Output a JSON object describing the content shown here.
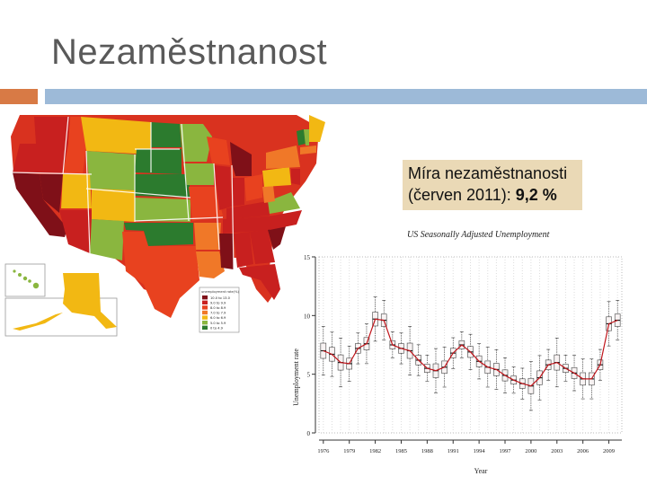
{
  "slide": {
    "title": "Nezaměstnanost",
    "rate_label": "Míra nezaměstnanosti",
    "rate_period": "(červen 2011):",
    "rate_value": "9,2 %"
  },
  "colors": {
    "accent_orange": "#d87a45",
    "accent_blue": "#9dbad8",
    "title": "#595959",
    "rate_box": "#ead9b6"
  },
  "map": {
    "legend_title": "unemployment rate(%)",
    "legend_ranges": [
      "10.0 to 13.0",
      "9.0 to 9.9",
      "8.0 to 8.9",
      "7.0 to 7.9",
      "6.0 to 6.9",
      "5.0 to 5.9",
      "0 to 4.9"
    ],
    "legend_colors": [
      "#7f1018",
      "#c8201f",
      "#e8421f",
      "#f07828",
      "#f2b813",
      "#8ab63f",
      "#2c7b2e"
    ]
  },
  "chart_data": {
    "type": "boxplot",
    "title": "US Seasonally Adjusted Unemployment",
    "xlabel": "Year",
    "ylabel": "Unemployment rate",
    "ylim": [
      0,
      15
    ],
    "yticks": [
      0,
      5,
      10,
      15
    ],
    "xtick_labels": [
      "1976",
      "1979",
      "1982",
      "1985",
      "1988",
      "1991",
      "1994",
      "1997",
      "2000",
      "2003",
      "2006",
      "2009"
    ],
    "years": [
      1976,
      1977,
      1978,
      1979,
      1980,
      1981,
      1982,
      1983,
      1984,
      1985,
      1986,
      1987,
      1988,
      1989,
      1990,
      1991,
      1992,
      1993,
      1994,
      1995,
      1996,
      1997,
      1998,
      1999,
      2000,
      2001,
      2002,
      2003,
      2004,
      2005,
      2006,
      2007,
      2008,
      2009,
      2010
    ],
    "medians": [
      7.0,
      6.7,
      6.0,
      5.9,
      7.2,
      7.6,
      9.7,
      9.6,
      7.5,
      7.2,
      7.0,
      6.2,
      5.5,
      5.3,
      5.6,
      6.8,
      7.5,
      6.9,
      6.1,
      5.6,
      5.4,
      4.9,
      4.5,
      4.2,
      4.0,
      4.7,
      5.8,
      6.0,
      5.5,
      5.1,
      4.6,
      4.6,
      5.8,
      9.3,
      9.6
    ]
  }
}
